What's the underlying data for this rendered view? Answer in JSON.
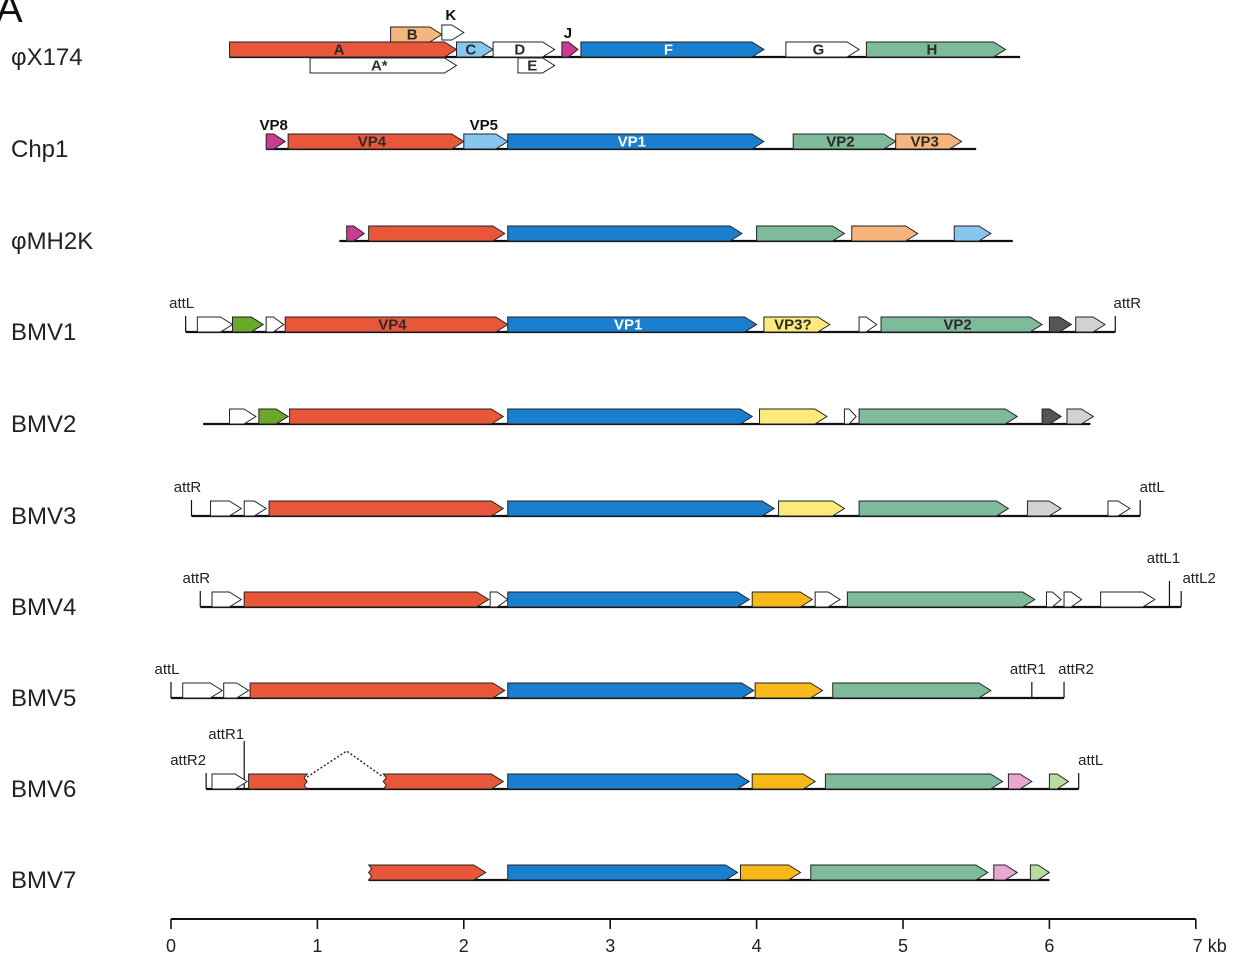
{
  "panel_label": "A",
  "colors": {
    "VP4": "#e8573a",
    "VP1": "#1b7fd0",
    "VP2": "#7dbb9a",
    "VP3": "#f7b57e",
    "VP3_yellow": "#fdea7c",
    "VP3_orange": "#f6b919",
    "VP5": "#87c7ef",
    "VP8": "#c93c8f",
    "green": "#6aa82c",
    "dark_gray": "#555555",
    "light_gray": "#d2d2d2",
    "pink": "#eaa5d0",
    "light_green": "#b8dc9c",
    "white": "#ffffff"
  },
  "axis": {
    "ticks": [
      0,
      1,
      2,
      3,
      4,
      5,
      6,
      7
    ],
    "labels": [
      "0",
      "1",
      "2",
      "3",
      "4",
      "5",
      "6",
      "7 kb"
    ],
    "min": 0,
    "max": 7
  },
  "genomes": [
    {
      "name": "φX174",
      "line": [
        0.4,
        5.8
      ],
      "genes": [
        {
          "start": 0.4,
          "end": 1.95,
          "color": "VP4",
          "label": "A"
        },
        {
          "start": 0.95,
          "end": 1.95,
          "color": "white",
          "label": "A*",
          "lane": "below",
          "label_color": "#333"
        },
        {
          "start": 1.5,
          "end": 1.85,
          "color": "VP3",
          "label": "B",
          "lane": "above"
        },
        {
          "start": 1.85,
          "end": 2.0,
          "color": "white",
          "label": "K",
          "lane": "above2",
          "label_outside": true
        },
        {
          "start": 1.95,
          "end": 2.2,
          "color": "VP5",
          "label": "C"
        },
        {
          "start": 2.2,
          "end": 2.62,
          "color": "white",
          "label": "D"
        },
        {
          "start": 2.37,
          "end": 2.62,
          "color": "white",
          "label": "E",
          "lane": "below"
        },
        {
          "start": 2.67,
          "end": 2.78,
          "color": "VP8",
          "label": "J",
          "label_outside": true,
          "label_bold": false
        },
        {
          "start": 2.8,
          "end": 4.05,
          "color": "VP1",
          "label": "F",
          "label_color": "#ffffff"
        },
        {
          "start": 4.2,
          "end": 4.7,
          "color": "white",
          "label": "G"
        },
        {
          "start": 4.75,
          "end": 5.7,
          "color": "VP2",
          "label": "H"
        }
      ],
      "sites": []
    },
    {
      "name": "Chp1",
      "line": [
        0.65,
        5.5
      ],
      "genes": [
        {
          "start": 0.65,
          "end": 0.78,
          "color": "VP8",
          "label": "VP8",
          "label_outside": true
        },
        {
          "start": 0.8,
          "end": 2.0,
          "color": "VP4",
          "label": "VP4"
        },
        {
          "start": 2.0,
          "end": 2.3,
          "color": "VP5",
          "label": "VP5",
          "label_outside": true
        },
        {
          "start": 2.3,
          "end": 4.05,
          "color": "VP1",
          "label": "VP1",
          "label_color": "#ffffff"
        },
        {
          "start": 4.25,
          "end": 4.95,
          "color": "VP2",
          "label": "VP2"
        },
        {
          "start": 4.95,
          "end": 5.4,
          "color": "VP3",
          "label": "VP3"
        }
      ],
      "sites": []
    },
    {
      "name": "φMH2K",
      "line": [
        1.15,
        5.75
      ],
      "genes": [
        {
          "start": 1.2,
          "end": 1.32,
          "color": "VP8"
        },
        {
          "start": 1.35,
          "end": 2.28,
          "color": "VP4"
        },
        {
          "start": 2.3,
          "end": 3.9,
          "color": "VP1"
        },
        {
          "start": 4.0,
          "end": 4.6,
          "color": "VP2"
        },
        {
          "start": 4.65,
          "end": 5.1,
          "color": "VP3"
        },
        {
          "start": 5.35,
          "end": 5.6,
          "color": "VP5"
        }
      ],
      "sites": []
    },
    {
      "name": "BMV1",
      "line": [
        0.1,
        6.45
      ],
      "genes": [
        {
          "start": 0.18,
          "end": 0.42,
          "color": "white"
        },
        {
          "start": 0.42,
          "end": 0.63,
          "color": "green"
        },
        {
          "start": 0.65,
          "end": 0.77,
          "color": "white"
        },
        {
          "start": 0.78,
          "end": 2.3,
          "color": "VP4",
          "label": "VP4"
        },
        {
          "start": 2.3,
          "end": 4.0,
          "color": "VP1",
          "label": "VP1",
          "label_color": "#ffffff"
        },
        {
          "start": 4.05,
          "end": 4.5,
          "color": "VP3_yellow",
          "label": "VP3?"
        },
        {
          "start": 4.7,
          "end": 4.82,
          "color": "white"
        },
        {
          "start": 4.85,
          "end": 5.95,
          "color": "VP2",
          "label": "VP2"
        },
        {
          "start": 6.0,
          "end": 6.15,
          "color": "dark_gray"
        },
        {
          "start": 6.18,
          "end": 6.38,
          "color": "light_gray"
        }
      ],
      "sites": [
        {
          "pos": 0.1,
          "label": "attL",
          "side": "left"
        },
        {
          "pos": 6.45,
          "label": "attR",
          "side": "right"
        }
      ]
    },
    {
      "name": "BMV2",
      "line": [
        0.22,
        6.28
      ],
      "genes": [
        {
          "start": 0.4,
          "end": 0.58,
          "color": "white"
        },
        {
          "start": 0.6,
          "end": 0.8,
          "color": "green"
        },
        {
          "start": 0.81,
          "end": 2.27,
          "color": "VP4"
        },
        {
          "start": 2.3,
          "end": 3.97,
          "color": "VP1"
        },
        {
          "start": 4.02,
          "end": 4.48,
          "color": "VP3_yellow"
        },
        {
          "start": 4.6,
          "end": 4.68,
          "color": "white"
        },
        {
          "start": 4.7,
          "end": 5.78,
          "color": "VP2"
        },
        {
          "start": 5.95,
          "end": 6.08,
          "color": "dark_gray"
        },
        {
          "start": 6.12,
          "end": 6.3,
          "color": "light_gray"
        }
      ],
      "sites": []
    },
    {
      "name": "BMV3",
      "line": [
        0.14,
        6.62
      ],
      "genes": [
        {
          "start": 0.27,
          "end": 0.48,
          "color": "white"
        },
        {
          "start": 0.5,
          "end": 0.65,
          "color": "white"
        },
        {
          "start": 0.67,
          "end": 2.27,
          "color": "VP4"
        },
        {
          "start": 2.3,
          "end": 4.12,
          "color": "VP1"
        },
        {
          "start": 4.15,
          "end": 4.6,
          "color": "VP3_yellow"
        },
        {
          "start": 4.7,
          "end": 5.72,
          "color": "VP2"
        },
        {
          "start": 5.85,
          "end": 6.08,
          "color": "light_gray"
        },
        {
          "start": 6.4,
          "end": 6.55,
          "color": "white"
        }
      ],
      "sites": [
        {
          "pos": 0.14,
          "label": "attR",
          "side": "left"
        },
        {
          "pos": 6.62,
          "label": "attL",
          "side": "right"
        }
      ]
    },
    {
      "name": "BMV4",
      "line": [
        0.2,
        6.9
      ],
      "genes": [
        {
          "start": 0.28,
          "end": 0.48,
          "color": "white"
        },
        {
          "start": 0.5,
          "end": 2.17,
          "color": "VP4"
        },
        {
          "start": 2.18,
          "end": 2.3,
          "color": "white"
        },
        {
          "start": 2.3,
          "end": 3.95,
          "color": "VP1"
        },
        {
          "start": 3.97,
          "end": 4.38,
          "color": "VP3_orange"
        },
        {
          "start": 4.4,
          "end": 4.57,
          "color": "white"
        },
        {
          "start": 4.62,
          "end": 5.9,
          "color": "VP2"
        },
        {
          "start": 5.98,
          "end": 6.08,
          "color": "white"
        },
        {
          "start": 6.1,
          "end": 6.22,
          "color": "white"
        },
        {
          "start": 6.35,
          "end": 6.72,
          "color": "white"
        }
      ],
      "sites": [
        {
          "pos": 0.2,
          "label": "attR",
          "side": "left"
        },
        {
          "pos": 6.82,
          "label": "attL1",
          "side": "mid-top"
        },
        {
          "pos": 6.9,
          "label": "attL2",
          "side": "right"
        }
      ]
    },
    {
      "name": "BMV5",
      "line": [
        0.0,
        6.1
      ],
      "genes": [
        {
          "start": 0.08,
          "end": 0.35,
          "color": "white"
        },
        {
          "start": 0.36,
          "end": 0.53,
          "color": "white"
        },
        {
          "start": 0.54,
          "end": 2.28,
          "color": "VP4"
        },
        {
          "start": 2.3,
          "end": 3.98,
          "color": "VP1"
        },
        {
          "start": 3.99,
          "end": 4.45,
          "color": "VP3_orange"
        },
        {
          "start": 4.52,
          "end": 5.6,
          "color": "VP2"
        }
      ],
      "sites": [
        {
          "pos": 0.0,
          "label": "attL",
          "side": "left"
        },
        {
          "pos": 5.88,
          "label": "attR1",
          "side": "mid"
        },
        {
          "pos": 6.1,
          "label": "attR2",
          "side": "right"
        }
      ]
    },
    {
      "name": "BMV6",
      "line": [
        0.24,
        6.2
      ],
      "genes": [
        {
          "start": 0.28,
          "end": 0.52,
          "color": "white"
        },
        {
          "start": 0.53,
          "end": 0.93,
          "color": "VP4",
          "cut_end": true,
          "flat": true
        },
        {
          "start": 1.45,
          "end": 2.27,
          "color": "VP4",
          "cut_start": true
        },
        {
          "start": 2.3,
          "end": 3.95,
          "color": "VP1"
        },
        {
          "start": 3.97,
          "end": 4.4,
          "color": "VP3_orange"
        },
        {
          "start": 4.47,
          "end": 5.68,
          "color": "VP2"
        },
        {
          "start": 5.72,
          "end": 5.88,
          "color": "pink"
        },
        {
          "start": 6.0,
          "end": 6.13,
          "color": "light_green"
        }
      ],
      "sites": [
        {
          "pos": 0.24,
          "label": "attR2",
          "side": "left"
        },
        {
          "pos": 0.5,
          "label": "attR1",
          "side": "upper-left"
        },
        {
          "pos": 6.2,
          "label": "attL",
          "side": "right"
        }
      ],
      "deletion": {
        "from": 0.93,
        "to": 1.45,
        "peak": 1.2
      }
    },
    {
      "name": "BMV7",
      "line": [
        1.35,
        6.0
      ],
      "genes": [
        {
          "start": 1.35,
          "end": 2.15,
          "color": "VP4",
          "cut_start": true
        },
        {
          "start": 2.3,
          "end": 3.87,
          "color": "VP1"
        },
        {
          "start": 3.89,
          "end": 4.3,
          "color": "VP3_orange"
        },
        {
          "start": 4.37,
          "end": 5.58,
          "color": "VP2"
        },
        {
          "start": 5.62,
          "end": 5.78,
          "color": "pink"
        },
        {
          "start": 5.87,
          "end": 6.0,
          "color": "light_green"
        }
      ],
      "sites": []
    }
  ]
}
